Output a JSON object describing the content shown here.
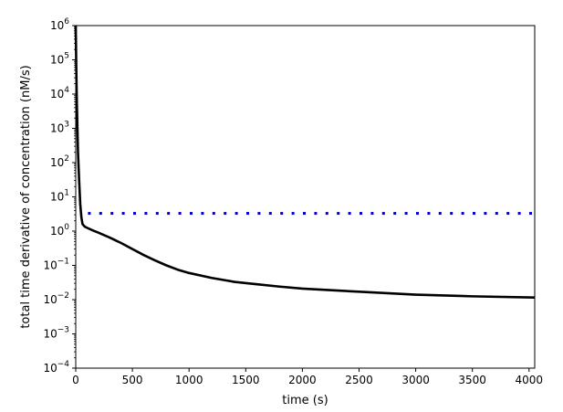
{
  "chart_data": {
    "type": "line",
    "xlabel": "time (s)",
    "ylabel": "total time derivative of concentration (nM/s)",
    "xlim": [
      0,
      4050
    ],
    "ylim": [
      0.0001,
      1000000
    ],
    "yscale": "log",
    "grid": false,
    "x_ticks": [
      0,
      500,
      1000,
      1500,
      2000,
      2500,
      3000,
      3500,
      4000
    ],
    "x_tick_labels": [
      "0",
      "500",
      "1000",
      "1500",
      "2000",
      "2500",
      "3000",
      "3500",
      "4000"
    ],
    "y_ticks": [
      {
        "value": 0.0001,
        "base": "10",
        "exp": "−4"
      },
      {
        "value": 0.001,
        "base": "10",
        "exp": "−3"
      },
      {
        "value": 0.01,
        "base": "10",
        "exp": "−2"
      },
      {
        "value": 0.1,
        "base": "10",
        "exp": "−1"
      },
      {
        "value": 1,
        "base": "10",
        "exp": "0"
      },
      {
        "value": 10,
        "base": "10",
        "exp": "1"
      },
      {
        "value": 100,
        "base": "10",
        "exp": "2"
      },
      {
        "value": 1000,
        "base": "10",
        "exp": "3"
      },
      {
        "value": 10000,
        "base": "10",
        "exp": "4"
      },
      {
        "value": 100000,
        "base": "10",
        "exp": "5"
      },
      {
        "value": 1000000,
        "base": "10",
        "exp": "6"
      }
    ],
    "series": [
      {
        "style": "solid",
        "color": "#000000",
        "x": [
          0,
          2,
          5,
          10,
          15,
          20,
          30,
          40,
          50,
          60,
          80,
          100,
          150,
          200,
          300,
          400,
          500,
          600,
          700,
          800,
          900,
          1000,
          1200,
          1400,
          1600,
          1800,
          2000,
          2500,
          3000,
          3500,
          4050
        ],
        "y": [
          1000000,
          300000,
          50000,
          5000,
          1000,
          200,
          30,
          6,
          2.5,
          1.6,
          1.35,
          1.25,
          1.05,
          0.9,
          0.65,
          0.45,
          0.3,
          0.2,
          0.14,
          0.1,
          0.075,
          0.06,
          0.043,
          0.033,
          0.028,
          0.024,
          0.021,
          0.017,
          0.014,
          0.0125,
          0.0115
        ]
      },
      {
        "style": "dotted",
        "color": "#0000cc",
        "x": [
          120,
          4050
        ],
        "y": [
          3.3,
          3.3
        ]
      }
    ]
  }
}
